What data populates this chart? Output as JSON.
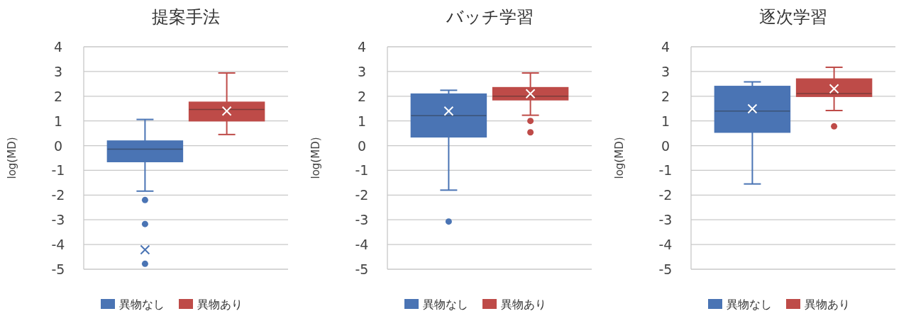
{
  "chart_data": [
    {
      "type": "box",
      "title": "提案手法",
      "ylabel": "log(MD)",
      "categories": [
        null
      ],
      "ylim": [
        -5,
        4
      ],
      "yticks": [
        -5,
        -4,
        -3,
        -2,
        -1,
        0,
        1,
        2,
        3,
        4
      ],
      "grid": "y",
      "legend": "bottom",
      "series": [
        {
          "name": "異物なし",
          "color": "#4a74b4",
          "boxes": [
            {
              "low": -1.84,
              "q1": -0.65,
              "median": -0.14,
              "q3": 0.19,
              "high": 1.06,
              "mean": -4.21,
              "outliers": [
                -2.2,
                -3.17,
                -4.78
              ]
            }
          ]
        },
        {
          "name": "異物あり",
          "color": "#be4b48",
          "boxes": [
            {
              "low": 0.45,
              "q1": 1.0,
              "median": 1.46,
              "q3": 1.76,
              "high": 2.94,
              "mean": 1.4
            }
          ]
        }
      ]
    },
    {
      "type": "box",
      "title": "バッチ学習",
      "ylabel": "log(MD)",
      "categories": [
        null
      ],
      "ylim": [
        -5,
        4
      ],
      "yticks": [
        -5,
        -4,
        -3,
        -2,
        -1,
        0,
        1,
        2,
        3,
        4
      ],
      "grid": "y",
      "legend": "bottom",
      "series": [
        {
          "name": "異物なし",
          "color": "#4a74b4",
          "boxes": [
            {
              "low": -1.8,
              "q1": 0.35,
              "median": 1.21,
              "q3": 2.09,
              "high": 2.24,
              "mean": 1.4,
              "outliers": [
                -3.07
              ]
            }
          ]
        },
        {
          "name": "異物あり",
          "color": "#be4b48",
          "boxes": [
            {
              "low": 1.23,
              "q1": 1.85,
              "median": 2.0,
              "q3": 2.35,
              "high": 2.94,
              "mean": 2.1,
              "outliers": [
                1.0,
                0.54
              ]
            }
          ]
        }
      ]
    },
    {
      "type": "box",
      "title": "逐次学習",
      "ylabel": "log(MD)",
      "categories": [
        null
      ],
      "ylim": [
        -5,
        4
      ],
      "yticks": [
        -5,
        -4,
        -3,
        -2,
        -1,
        0,
        1,
        2,
        3,
        4
      ],
      "grid": "y",
      "legend": "bottom",
      "series": [
        {
          "name": "異物なし",
          "color": "#4a74b4",
          "boxes": [
            {
              "low": -1.55,
              "q1": 0.54,
              "median": 1.4,
              "q3": 2.4,
              "high": 2.58,
              "mean": 1.49
            }
          ]
        },
        {
          "name": "異物あり",
          "color": "#be4b48",
          "boxes": [
            {
              "low": 1.42,
              "q1": 1.99,
              "median": 2.11,
              "q3": 2.7,
              "high": 3.17,
              "mean": 2.3,
              "outliers": [
                0.78
              ]
            }
          ]
        }
      ]
    }
  ]
}
